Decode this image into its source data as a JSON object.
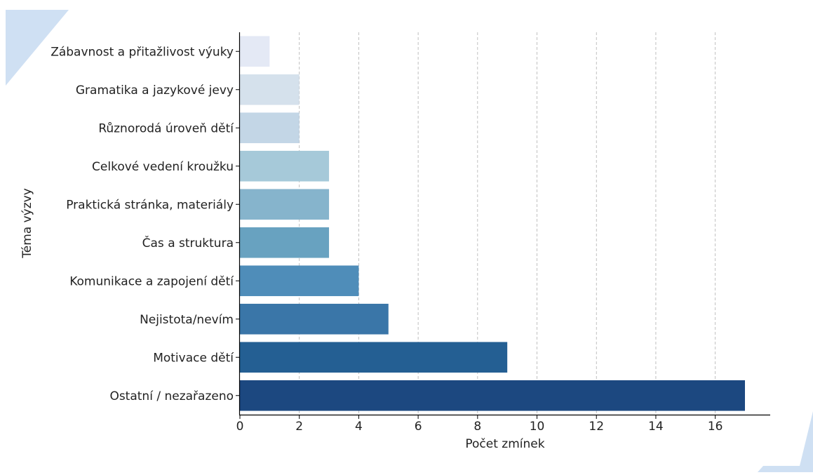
{
  "colors": {
    "decoration": "#cfe0f3",
    "axis": "#000000",
    "grid": "#b0b0b0",
    "bars": [
      "#e4e9f5",
      "#d5e1ec",
      "#c3d6e6",
      "#a6c9d9",
      "#86b4cc",
      "#68a2c0",
      "#4f8db9",
      "#3a76a8",
      "#245f93",
      "#1c4880"
    ]
  },
  "chart_data": {
    "type": "bar",
    "orientation": "horizontal",
    "categories": [
      "Zábavnost a přitažlivost výuky",
      "Gramatika a jazykové jevy",
      "Různorodá úroveň dětí",
      "Celkové vedení kroužku",
      "Praktická stránka, materiály",
      "Čas a struktura",
      "Komunikace a zapojení dětí",
      "Nejistota/nevím",
      "Motivace dětí",
      "Ostatní / nezařazeno"
    ],
    "values": [
      1,
      2,
      2,
      3,
      3,
      3,
      4,
      5,
      9,
      17
    ],
    "xlabel": "Počet zmínek",
    "ylabel": "Téma výzvy",
    "xlim": [
      0,
      17.85
    ],
    "xticks": [
      0,
      2,
      4,
      6,
      8,
      10,
      12,
      14,
      16
    ],
    "grid": "x-dashed"
  }
}
